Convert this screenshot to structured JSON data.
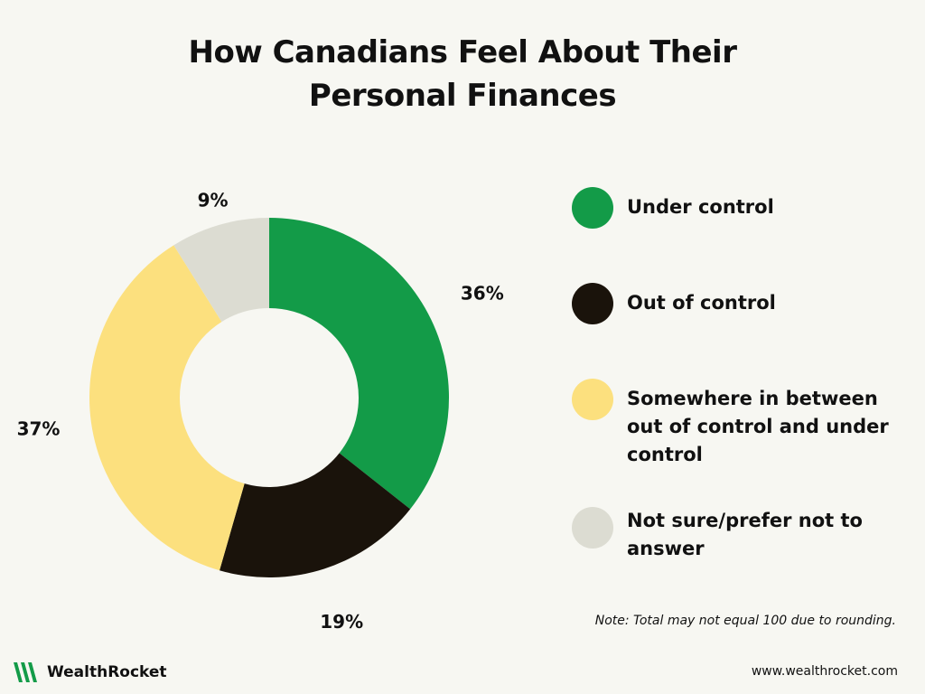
{
  "chart_data": {
    "type": "pie",
    "style": "donut",
    "title_lines": [
      "How Canadians Feel About Their",
      "Personal Finances"
    ],
    "slices": [
      {
        "label": "Under control",
        "value": 36,
        "display": "36%",
        "color": "#139b48"
      },
      {
        "label": "Out of control",
        "value": 19,
        "display": "19%",
        "color": "#1a130b"
      },
      {
        "label": "Somewhere in between out of control and under control",
        "value": 37,
        "display": "37%",
        "color": "#fce07e"
      },
      {
        "label": "Not sure/prefer not to answer",
        "value": 9,
        "display": "9%",
        "color": "#dcdcd2"
      }
    ],
    "legend_position": "right",
    "note": "Note: Total may not equal 100 due to rounding."
  },
  "branding": {
    "name": "WealthRocket",
    "website": "www.wealthrocket.com",
    "logo_color": "#139b48"
  }
}
